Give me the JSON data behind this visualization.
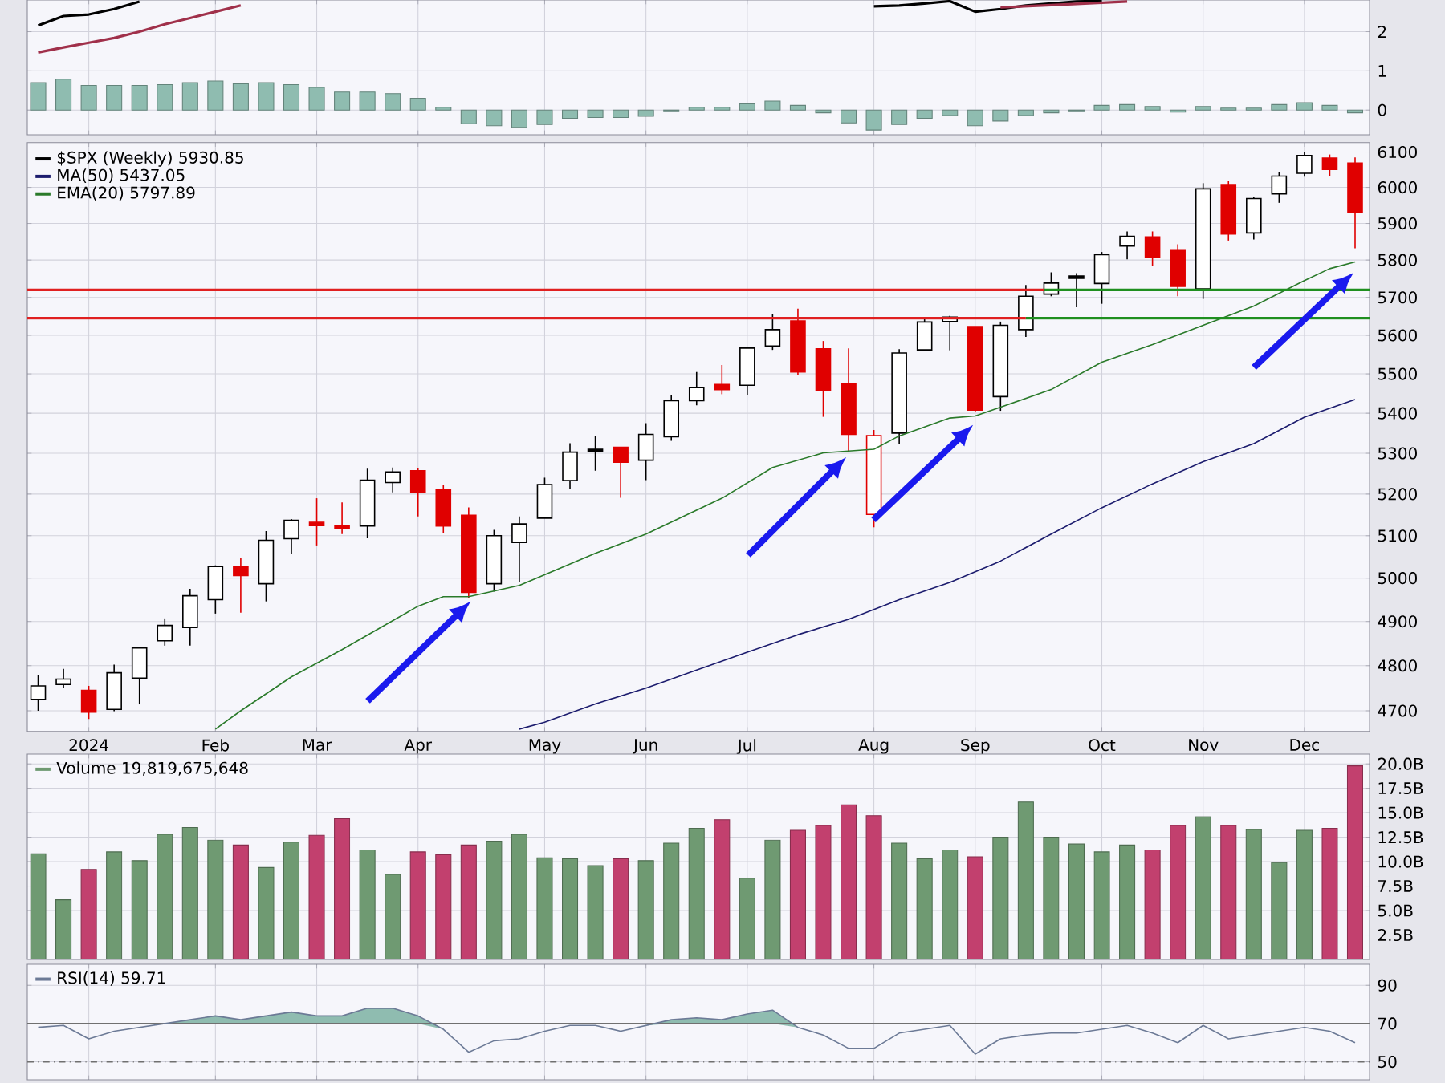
{
  "chart_data": [
    {
      "type": "bar",
      "xlim": [
        "2023-12-19",
        "2024-12-24"
      ],
      "ylim": [
        -0.63,
        2.81
      ],
      "yticks": [
        0,
        1,
        2
      ],
      "grid": true,
      "tick_labels": "y",
      "xticks": [
        {
          "value": "2024-01-05",
          "label": null
        },
        {
          "value": "2024-02-09",
          "label": null
        },
        {
          "value": "2024-03-08",
          "label": null
        },
        {
          "value": "2024-04-05",
          "label": null
        },
        {
          "value": "2024-05-10",
          "label": null
        },
        {
          "value": "2024-06-07",
          "label": null
        },
        {
          "value": "2024-07-05",
          "label": null
        },
        {
          "value": "2024-08-09",
          "label": null
        },
        {
          "value": "2024-09-06",
          "label": null
        },
        {
          "value": "2024-10-11",
          "label": null
        },
        {
          "value": "2024-11-08",
          "label": null
        },
        {
          "value": "2024-12-06",
          "label": null
        }
      ],
      "x": [
        "2023-12-22",
        "2023-12-29",
        "2024-01-05",
        "2024-01-12",
        "2024-01-19",
        "2024-01-26",
        "2024-02-02",
        "2024-02-09",
        "2024-02-16",
        "2024-02-23",
        "2024-03-01",
        "2024-03-08",
        "2024-03-15",
        "2024-03-22",
        "2024-03-29",
        "2024-04-05",
        "2024-04-12",
        "2024-04-19",
        "2024-04-26",
        "2024-05-03",
        "2024-05-10",
        "2024-05-17",
        "2024-05-24",
        "2024-05-31",
        "2024-06-07",
        "2024-06-14",
        "2024-06-21",
        "2024-06-28",
        "2024-07-05",
        "2024-07-12",
        "2024-07-19",
        "2024-07-26",
        "2024-08-02",
        "2024-08-09",
        "2024-08-16",
        "2024-08-23",
        "2024-08-30",
        "2024-09-06",
        "2024-09-13",
        "2024-09-20",
        "2024-09-27",
        "2024-10-04",
        "2024-10-11",
        "2024-10-18",
        "2024-10-25",
        "2024-11-01",
        "2024-11-08",
        "2024-11-15",
        "2024-11-22",
        "2024-11-29",
        "2024-12-06",
        "2024-12-13",
        "2024-12-20"
      ],
      "series": [
        {
          "color": "#8fbcb0",
          "values": [
            0.7,
            0.79,
            0.63,
            0.63,
            0.63,
            0.65,
            0.7,
            0.74,
            0.67,
            0.7,
            0.65,
            0.58,
            0.46,
            0.46,
            0.42,
            0.3,
            0.07,
            -0.35,
            -0.4,
            -0.44,
            -0.37,
            -0.21,
            -0.19,
            -0.19,
            -0.16,
            -0.02,
            0.07,
            0.07,
            0.16,
            0.23,
            0.12,
            -0.07,
            -0.33,
            -0.51,
            -0.37,
            -0.21,
            -0.14,
            -0.4,
            -0.28,
            -0.14,
            -0.07,
            -0.02,
            0.12,
            0.14,
            0.09,
            -0.05,
            0.09,
            0.05,
            0.05,
            0.14,
            0.19,
            0.12,
            -0.07
          ]
        },
        {
          "type": "line",
          "color": "#000000",
          "values": [
            2.16,
            2.4,
            2.44,
            2.58,
            2.77,
            null,
            null,
            null,
            null,
            null,
            null,
            null,
            null,
            null,
            null,
            null,
            null,
            null,
            null,
            null,
            null,
            null,
            null,
            null,
            null,
            null,
            null,
            null,
            null,
            null,
            null,
            null,
            null,
            2.65,
            2.67,
            2.72,
            2.78,
            2.51,
            2.58,
            2.67,
            2.72,
            2.77,
            2.79,
            null,
            null,
            null,
            null,
            null,
            null,
            null,
            null,
            null,
            null
          ]
        },
        {
          "type": "line",
          "color": "#a0304a",
          "values": [
            1.47,
            1.6,
            1.72,
            1.84,
            2.0,
            2.19,
            2.35,
            2.51,
            2.67,
            null,
            null,
            null,
            null,
            null,
            null,
            null,
            null,
            null,
            null,
            null,
            null,
            null,
            null,
            null,
            null,
            null,
            null,
            null,
            null,
            null,
            null,
            null,
            null,
            null,
            null,
            null,
            null,
            null,
            2.62,
            2.65,
            2.68,
            2.71,
            2.74,
            2.77,
            null,
            null,
            null,
            null,
            null,
            null,
            null,
            null,
            null
          ]
        }
      ]
    },
    {
      "type": "candlestick",
      "log": true,
      "xlim": [
        "2023-12-19",
        "2024-12-24"
      ],
      "ylim": [
        4655,
        6127
      ],
      "yticks": [
        4700,
        4800,
        4900,
        5000,
        5100,
        5200,
        5300,
        5400,
        5500,
        5600,
        5700,
        5800,
        5900,
        6000,
        6100
      ],
      "grid": true,
      "legend": "top left",
      "xticks": [
        {
          "value": "2024-01-05",
          "label": "2024"
        },
        {
          "value": "2024-02-09",
          "label": "Feb"
        },
        {
          "value": "2024-03-08",
          "label": "Mar"
        },
        {
          "value": "2024-04-05",
          "label": "Apr"
        },
        {
          "value": "2024-05-10",
          "label": "May"
        },
        {
          "value": "2024-06-07",
          "label": "Jun"
        },
        {
          "value": "2024-07-05",
          "label": "Jul"
        },
        {
          "value": "2024-08-09",
          "label": "Aug"
        },
        {
          "value": "2024-09-06",
          "label": "Sep"
        },
        {
          "value": "2024-10-11",
          "label": "Oct"
        },
        {
          "value": "2024-11-08",
          "label": "Nov"
        },
        {
          "value": "2024-12-06",
          "label": "Dec"
        }
      ],
      "x": [
        "2023-12-22",
        "2023-12-29",
        "2024-01-05",
        "2024-01-12",
        "2024-01-19",
        "2024-01-26",
        "2024-02-02",
        "2024-02-09",
        "2024-02-16",
        "2024-02-23",
        "2024-03-01",
        "2024-03-08",
        "2024-03-15",
        "2024-03-22",
        "2024-03-29",
        "2024-04-05",
        "2024-04-12",
        "2024-04-19",
        "2024-04-26",
        "2024-05-03",
        "2024-05-10",
        "2024-05-17",
        "2024-05-24",
        "2024-05-31",
        "2024-06-07",
        "2024-06-14",
        "2024-06-21",
        "2024-06-28",
        "2024-07-05",
        "2024-07-12",
        "2024-07-19",
        "2024-07-26",
        "2024-08-02",
        "2024-08-09",
        "2024-08-16",
        "2024-08-23",
        "2024-08-30",
        "2024-09-06",
        "2024-09-13",
        "2024-09-20",
        "2024-09-27",
        "2024-10-04",
        "2024-10-11",
        "2024-10-18",
        "2024-10-25",
        "2024-11-01",
        "2024-11-08",
        "2024-11-15",
        "2024-11-22",
        "2024-11-29",
        "2024-12-06",
        "2024-12-13",
        "2024-12-20"
      ],
      "series": [
        {
          "type": "candlestick",
          "name": "$SPX (Weekly) 5930.85",
          "ohlc": [
            [
              4725,
              4778,
              4700,
              4755
            ],
            [
              4758,
              4793,
              4751,
              4770
            ],
            [
              4745,
              4755,
              4682,
              4697
            ],
            [
              4703,
              4802,
              4699,
              4784
            ],
            [
              4772,
              4842,
              4714,
              4840
            ],
            [
              4856,
              4907,
              4845,
              4891
            ],
            [
              4886,
              4975,
              4845,
              4959
            ],
            [
              4950,
              5030,
              4918,
              5027
            ],
            [
              5026,
              5048,
              4920,
              5006
            ],
            [
              4987,
              5111,
              4946,
              5089
            ],
            [
              5093,
              5140,
              5057,
              5137
            ],
            [
              5132,
              5190,
              5077,
              5124
            ],
            [
              5123,
              5180,
              5104,
              5117
            ],
            [
              5123,
              5262,
              5094,
              5234
            ],
            [
              5228,
              5265,
              5204,
              5254
            ],
            [
              5257,
              5264,
              5146,
              5204
            ],
            [
              5211,
              5222,
              5107,
              5123
            ],
            [
              5149,
              5168,
              4953,
              4967
            ],
            [
              4987,
              5114,
              4969,
              5100
            ],
            [
              5084,
              5146,
              4990,
              5128
            ],
            [
              5142,
              5240,
              5142,
              5223
            ],
            [
              5233,
              5325,
              5212,
              5303
            ],
            [
              5310,
              5342,
              5257,
              5305
            ],
            [
              5315,
              5315,
              5191,
              5278
            ],
            [
              5283,
              5375,
              5234,
              5347
            ],
            [
              5341,
              5447,
              5331,
              5432
            ],
            [
              5432,
              5505,
              5420,
              5465
            ],
            [
              5473,
              5523,
              5448,
              5460
            ],
            [
              5471,
              5570,
              5445,
              5567
            ],
            [
              5572,
              5655,
              5562,
              5615
            ],
            [
              5638,
              5670,
              5497,
              5505
            ],
            [
              5565,
              5585,
              5391,
              5459
            ],
            [
              5476,
              5566,
              5306,
              5347
            ],
            [
              5151,
              5358,
              5120,
              5344
            ],
            [
              5350,
              5564,
              5322,
              5554
            ],
            [
              5562,
              5643,
              5560,
              5635
            ],
            [
              5636,
              5651,
              5561,
              5648
            ],
            [
              5623,
              5623,
              5403,
              5408
            ],
            [
              5442,
              5636,
              5406,
              5626
            ],
            [
              5615,
              5733,
              5596,
              5703
            ],
            [
              5709,
              5767,
              5703,
              5738
            ],
            [
              5757,
              5765,
              5674,
              5751
            ],
            [
              5737,
              5822,
              5683,
              5815
            ],
            [
              5838,
              5878,
              5802,
              5865
            ],
            [
              5863,
              5878,
              5783,
              5808
            ],
            [
              5826,
              5843,
              5703,
              5729
            ],
            [
              5723,
              6012,
              5696,
              5996
            ],
            [
              6008,
              6018,
              5853,
              5871
            ],
            [
              5874,
              5973,
              5856,
              5969
            ],
            [
              5982,
              6044,
              5957,
              6032
            ],
            [
              6040,
              6099,
              6030,
              6090
            ],
            [
              6083,
              6093,
              6032,
              6051
            ],
            [
              6069,
              6085,
              5832,
              5931
            ]
          ],
          "colors": [
            "#000000",
            "#000000",
            "#e00000",
            "#000000",
            "#000000",
            "#000000",
            "#000000",
            "#000000",
            "#e00000",
            "#000000",
            "#000000",
            "#e00000",
            "#e00000",
            "#000000",
            "#000000",
            "#e00000",
            "#e00000",
            "#e00000",
            "#000000",
            "#000000",
            "#000000",
            "#000000",
            "#000000",
            "#e00000",
            "#000000",
            "#000000",
            "#000000",
            "#e00000",
            "#000000",
            "#000000",
            "#e00000",
            "#e00000",
            "#e00000",
            "#e00000",
            "#000000",
            "#000000",
            "#000000",
            "#e00000",
            "#000000",
            "#000000",
            "#000000",
            "#000000",
            "#000000",
            "#000000",
            "#e00000",
            "#e00000",
            "#000000",
            "#e00000",
            "#000000",
            "#000000",
            "#000000",
            "#e00000",
            "#e00000"
          ]
        },
        {
          "type": "line",
          "name": "MA(50) 5437.05",
          "color": "#1c1c6e",
          "x": [
            "2024-05-03",
            "2024-05-10",
            "2024-05-24",
            "2024-06-07",
            "2024-06-21",
            "2024-07-05",
            "2024-07-19",
            "2024-08-02",
            "2024-08-16",
            "2024-08-30",
            "2024-09-13",
            "2024-09-27",
            "2024-10-11",
            "2024-10-25",
            "2024-11-08",
            "2024-11-22",
            "2024-12-06",
            "2024-12-20"
          ],
          "values": [
            4660,
            4675,
            4715,
            4750,
            4790,
            4830,
            4870,
            4905,
            4950,
            4990,
            5040,
            5104,
            5167,
            5225,
            5279,
            5324,
            5390,
            5435
          ]
        },
        {
          "type": "line",
          "name": "EMA(20) 5797.89",
          "color": "#2a7a2a",
          "x": [
            "2024-02-09",
            "2024-02-16",
            "2024-03-01",
            "2024-03-15",
            "2024-04-05",
            "2024-04-12",
            "2024-04-19",
            "2024-05-03",
            "2024-05-24",
            "2024-06-07",
            "2024-06-28",
            "2024-07-12",
            "2024-07-26",
            "2024-08-09",
            "2024-08-16",
            "2024-08-30",
            "2024-09-06",
            "2024-09-27",
            "2024-10-11",
            "2024-10-25",
            "2024-11-08",
            "2024-11-22",
            "2024-12-06",
            "2024-12-13",
            "2024-12-20"
          ],
          "values": [
            4660,
            4700,
            4775,
            4836,
            4935,
            4957,
            4957,
            4983,
            5058,
            5104,
            5190,
            5265,
            5301,
            5310,
            5343,
            5388,
            5393,
            5460,
            5530,
            5576,
            5626,
            5677,
            5745,
            5777,
            5795
          ]
        },
        {
          "type": "line",
          "color": "#e02020",
          "x": [
            "2023-12-19",
            "2024-09-25"
          ],
          "values": [
            5720,
            5720
          ]
        },
        {
          "type": "line",
          "color": "#1f8f1f",
          "x": [
            "2024-09-25",
            "2024-12-24"
          ],
          "values": [
            5720,
            5720
          ]
        },
        {
          "type": "line",
          "color": "#e02020",
          "x": [
            "2023-12-19",
            "2024-09-20"
          ],
          "values": [
            5645,
            5645
          ]
        },
        {
          "type": "line",
          "color": "#1f8f1f",
          "x": [
            "2024-09-20",
            "2024-12-24"
          ],
          "values": [
            5645,
            5645
          ]
        }
      ]
    },
    {
      "type": "bar",
      "xlim": [
        "2023-12-19",
        "2024-12-24"
      ],
      "ylim": [
        0,
        21
      ],
      "grid": true,
      "legend": "top left",
      "tick_labels": "y",
      "yticks": [
        {
          "value": 2.5,
          "label": "2.5B"
        },
        {
          "value": 5.0,
          "label": "5.0B"
        },
        {
          "value": 7.5,
          "label": "7.5B"
        },
        {
          "value": 10.0,
          "label": "10.0B"
        },
        {
          "value": 12.5,
          "label": "12.5B"
        },
        {
          "value": 15.0,
          "label": "15.0B"
        },
        {
          "value": 17.5,
          "label": "17.5B"
        },
        {
          "value": 20.0,
          "label": "20.0B"
        }
      ],
      "xticks": [
        {
          "value": "2024-01-05",
          "label": null
        },
        {
          "value": "2024-02-09",
          "label": null
        },
        {
          "value": "2024-03-08",
          "label": null
        },
        {
          "value": "2024-04-05",
          "label": null
        },
        {
          "value": "2024-05-10",
          "label": null
        },
        {
          "value": "2024-06-07",
          "label": null
        },
        {
          "value": "2024-07-05",
          "label": null
        },
        {
          "value": "2024-08-09",
          "label": null
        },
        {
          "value": "2024-09-06",
          "label": null
        },
        {
          "value": "2024-10-11",
          "label": null
        },
        {
          "value": "2024-11-08",
          "label": null
        },
        {
          "value": "2024-12-06",
          "label": null
        }
      ],
      "x": [
        "2023-12-22",
        "2023-12-29",
        "2024-01-05",
        "2024-01-12",
        "2024-01-19",
        "2024-01-26",
        "2024-02-02",
        "2024-02-09",
        "2024-02-16",
        "2024-02-23",
        "2024-03-01",
        "2024-03-08",
        "2024-03-15",
        "2024-03-22",
        "2024-03-29",
        "2024-04-05",
        "2024-04-12",
        "2024-04-19",
        "2024-04-26",
        "2024-05-03",
        "2024-05-10",
        "2024-05-17",
        "2024-05-24",
        "2024-05-31",
        "2024-06-07",
        "2024-06-14",
        "2024-06-21",
        "2024-06-28",
        "2024-07-05",
        "2024-07-12",
        "2024-07-19",
        "2024-07-26",
        "2024-08-02",
        "2024-08-09",
        "2024-08-16",
        "2024-08-23",
        "2024-08-30",
        "2024-09-06",
        "2024-09-13",
        "2024-09-20",
        "2024-09-27",
        "2024-10-04",
        "2024-10-11",
        "2024-10-18",
        "2024-10-25",
        "2024-11-01",
        "2024-11-08",
        "2024-11-15",
        "2024-11-22",
        "2024-11-29",
        "2024-12-06",
        "2024-12-13",
        "2024-12-20"
      ],
      "series": [
        {
          "name": "Volume 19,819,675,648",
          "color": "#6f9a72",
          "values": [
            10.8,
            6.1,
            9.2,
            11.0,
            10.1,
            12.8,
            13.5,
            12.2,
            11.7,
            9.4,
            12.0,
            12.7,
            14.4,
            11.2,
            8.7,
            11.0,
            10.7,
            11.7,
            12.1,
            12.8,
            10.4,
            10.3,
            9.6,
            10.3,
            10.1,
            11.9,
            13.4,
            14.3,
            8.3,
            12.2,
            13.2,
            13.7,
            15.8,
            14.7,
            11.9,
            10.3,
            11.2,
            10.5,
            12.5,
            16.1,
            12.5,
            11.8,
            11.0,
            11.7,
            11.2,
            13.7,
            14.6,
            13.7,
            13.3,
            9.9,
            13.2,
            13.4,
            19.8
          ],
          "colors": [
            "#6f9a72",
            "#6f9a72",
            "#c2406e",
            "#6f9a72",
            "#6f9a72",
            "#6f9a72",
            "#6f9a72",
            "#6f9a72",
            "#c2406e",
            "#6f9a72",
            "#6f9a72",
            "#c2406e",
            "#c2406e",
            "#6f9a72",
            "#6f9a72",
            "#c2406e",
            "#c2406e",
            "#c2406e",
            "#6f9a72",
            "#6f9a72",
            "#6f9a72",
            "#6f9a72",
            "#6f9a72",
            "#c2406e",
            "#6f9a72",
            "#6f9a72",
            "#6f9a72",
            "#c2406e",
            "#6f9a72",
            "#6f9a72",
            "#c2406e",
            "#c2406e",
            "#c2406e",
            "#c2406e",
            "#6f9a72",
            "#6f9a72",
            "#6f9a72",
            "#c2406e",
            "#6f9a72",
            "#6f9a72",
            "#6f9a72",
            "#6f9a72",
            "#6f9a72",
            "#6f9a72",
            "#c2406e",
            "#c2406e",
            "#6f9a72",
            "#c2406e",
            "#6f9a72",
            "#6f9a72",
            "#6f9a72",
            "#c2406e",
            "#c2406e"
          ]
        }
      ]
    },
    {
      "type": "line",
      "xlim": [
        "2023-12-19",
        "2024-12-24"
      ],
      "ylim": [
        40.6,
        101
      ],
      "yticks": [
        50,
        70,
        90
      ],
      "grid": true,
      "legend": "top left",
      "tick_labels": "y",
      "xticks": [
        {
          "value": "2024-01-05",
          "label": null
        },
        {
          "value": "2024-02-09",
          "label": null
        },
        {
          "value": "2024-03-08",
          "label": null
        },
        {
          "value": "2024-04-05",
          "label": null
        },
        {
          "value": "2024-05-10",
          "label": null
        },
        {
          "value": "2024-06-07",
          "label": null
        },
        {
          "value": "2024-07-05",
          "label": null
        },
        {
          "value": "2024-08-09",
          "label": null
        },
        {
          "value": "2024-09-06",
          "label": null
        },
        {
          "value": "2024-10-11",
          "label": null
        },
        {
          "value": "2024-11-08",
          "label": null
        },
        {
          "value": "2024-12-06",
          "label": null
        }
      ],
      "ref_lines": [
        {
          "axis": "y",
          "value": 70,
          "color": "#707070",
          "line_style": "solid"
        },
        {
          "axis": "y",
          "value": 50,
          "color": "#707070",
          "line_style": "dashed"
        }
      ],
      "x": [
        "2023-12-22",
        "2023-12-29",
        "2024-01-05",
        "2024-01-12",
        "2024-01-19",
        "2024-01-26",
        "2024-02-02",
        "2024-02-09",
        "2024-02-16",
        "2024-02-23",
        "2024-03-01",
        "2024-03-08",
        "2024-03-15",
        "2024-03-22",
        "2024-03-29",
        "2024-04-05",
        "2024-04-12",
        "2024-04-19",
        "2024-04-26",
        "2024-05-03",
        "2024-05-10",
        "2024-05-17",
        "2024-05-24",
        "2024-05-31",
        "2024-06-07",
        "2024-06-14",
        "2024-06-21",
        "2024-06-28",
        "2024-07-05",
        "2024-07-12",
        "2024-07-19",
        "2024-07-26",
        "2024-08-02",
        "2024-08-09",
        "2024-08-16",
        "2024-08-23",
        "2024-08-30",
        "2024-09-06",
        "2024-09-13",
        "2024-09-20",
        "2024-09-27",
        "2024-10-04",
        "2024-10-11",
        "2024-10-18",
        "2024-10-25",
        "2024-11-01",
        "2024-11-08",
        "2024-11-15",
        "2024-11-22",
        "2024-11-29",
        "2024-12-06",
        "2024-12-13",
        "2024-12-20"
      ],
      "series": [
        {
          "name": "RSI(14) 59.71",
          "color": "#6c7a96",
          "values": [
            68,
            69,
            62,
            66,
            68,
            70,
            72,
            74,
            72,
            74,
            76,
            74,
            74,
            78,
            78,
            74,
            67,
            55,
            61,
            62,
            66,
            69,
            69,
            66,
            69,
            72,
            73,
            72,
            75,
            77,
            68,
            64,
            57,
            57,
            65,
            67,
            69,
            54,
            62,
            64,
            65,
            65,
            67,
            69,
            65,
            60,
            69,
            62,
            64,
            66,
            68,
            66,
            60
          ],
          "upper": [
            68,
            69,
            62,
            66,
            68,
            70,
            72,
            74,
            72,
            74,
            76,
            74,
            74,
            78,
            78,
            74,
            67,
            55,
            61,
            62,
            66,
            69,
            69,
            66,
            69,
            72,
            73,
            72,
            75,
            77,
            68,
            64,
            57,
            57,
            65,
            67,
            69,
            54,
            62,
            64,
            65,
            65,
            67,
            69,
            65,
            60,
            69,
            62,
            64,
            66,
            68,
            66,
            60
          ],
          "lower": [
            68,
            69,
            62,
            66,
            68,
            70,
            70,
            70,
            70,
            70,
            70,
            70,
            70,
            70,
            70,
            70,
            67,
            55,
            61,
            62,
            66,
            69,
            69,
            66,
            69,
            70,
            70,
            70,
            70,
            70,
            68,
            64,
            57,
            57,
            65,
            67,
            69,
            54,
            62,
            64,
            65,
            65,
            67,
            69,
            65,
            60,
            69,
            62,
            64,
            66,
            68,
            66,
            60
          ]
        }
      ]
    }
  ]
}
